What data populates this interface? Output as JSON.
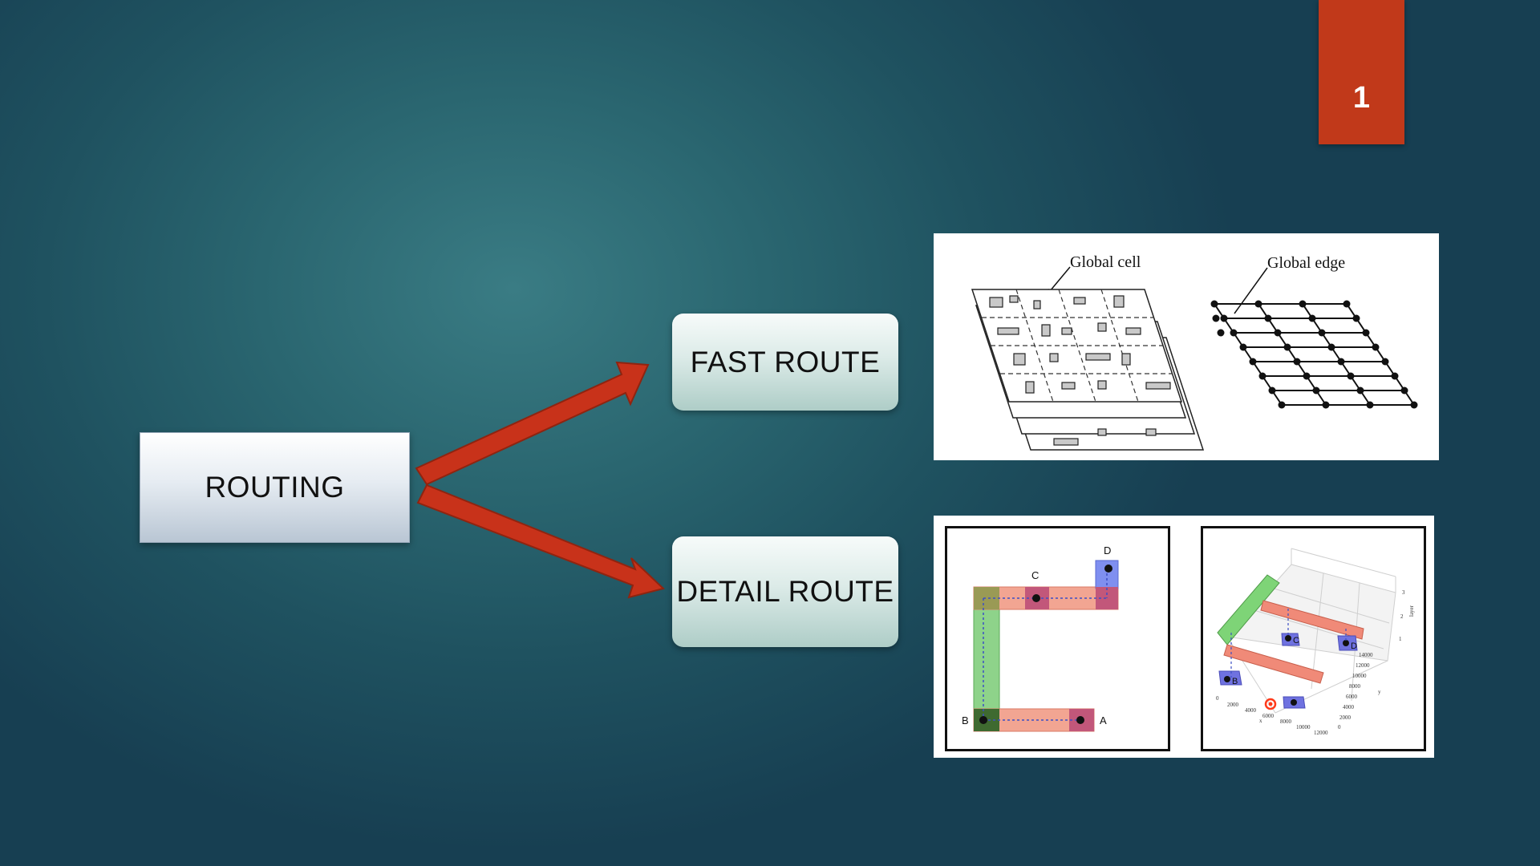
{
  "slide": {
    "number": "1"
  },
  "diagram": {
    "root_label": "ROUTING",
    "branches": [
      {
        "label": "FAST ROUTE"
      },
      {
        "label": "DETAIL ROUTE"
      }
    ]
  },
  "global_routing_figure": {
    "cell_label": "Global cell",
    "edge_label": "Global edge"
  },
  "detail_routing_figure": {
    "pins_2d": [
      "A",
      "B",
      "C",
      "D"
    ],
    "pins_3d": [
      "B",
      "C",
      "D"
    ],
    "axis_ticks_x": [
      "0",
      "2000",
      "4000",
      "6000",
      "8000",
      "10000",
      "12000"
    ],
    "axis_ticks_y": [
      "0",
      "2000",
      "4000",
      "6000",
      "8000",
      "10000",
      "12000",
      "14000"
    ],
    "axis_ticks_z": [
      "1",
      "2",
      "3"
    ],
    "axis_label_x": "x",
    "axis_label_y": "y",
    "axis_label_z": "layer"
  },
  "colors": {
    "accent": "#c1391a",
    "arrow": "#c8321a",
    "background": "#2a6670"
  }
}
